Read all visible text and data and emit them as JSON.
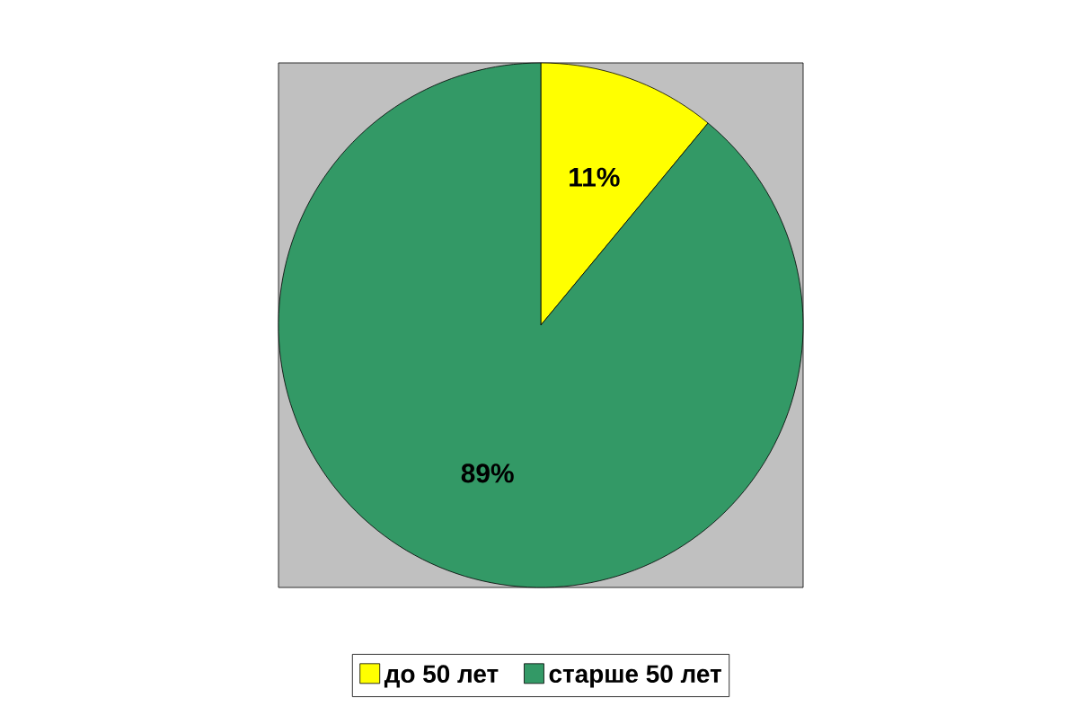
{
  "chart_data": {
    "type": "pie",
    "categories": [
      "до 50 лет",
      "старше 50 лет"
    ],
    "values": [
      11,
      89
    ],
    "colors": [
      "#ffff00",
      "#339966"
    ],
    "value_labels": [
      "11%",
      "89%"
    ],
    "legend": "bottom"
  }
}
